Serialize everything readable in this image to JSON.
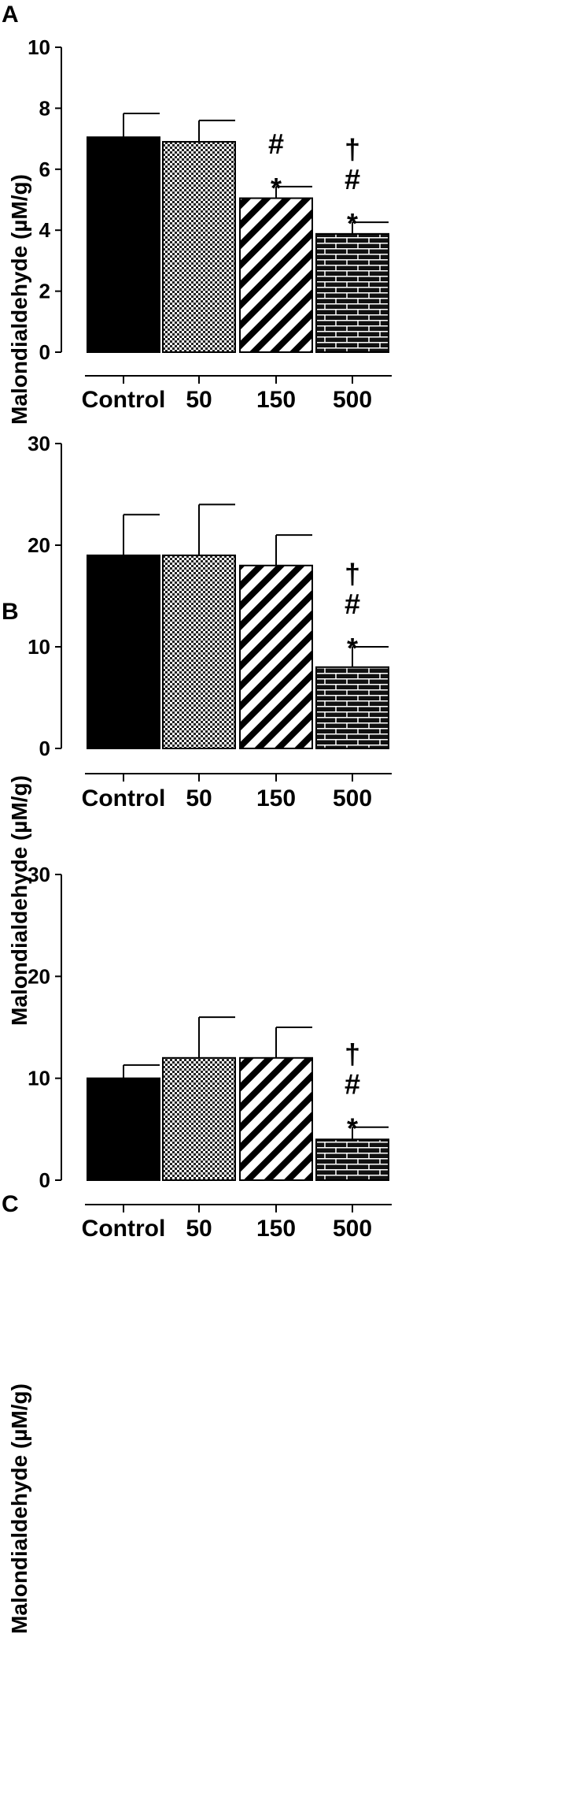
{
  "chart_data": [
    {
      "type": "bar",
      "panel": "A",
      "categories": [
        "Control",
        "50",
        "150",
        "500"
      ],
      "values": [
        7.05,
        6.9,
        5.05,
        3.88
      ],
      "errors": [
        0.78,
        0.7,
        0.38,
        0.38
      ],
      "patterns": [
        "solid",
        "checker",
        "diagonal",
        "brick"
      ],
      "ylabel": "Malondialdehyde (µM/g)",
      "ylim": [
        0,
        10
      ],
      "yticks": [
        0,
        2,
        4,
        6,
        8,
        10
      ],
      "annotations": [
        {
          "category": "150",
          "symbols": [
            "#",
            "*"
          ]
        },
        {
          "category": "500",
          "symbols": [
            "†",
            "#",
            "*"
          ]
        }
      ],
      "grid": false
    },
    {
      "type": "bar",
      "panel": "B",
      "categories": [
        "Control",
        "50",
        "150",
        "500"
      ],
      "values": [
        19,
        19,
        18,
        8
      ],
      "errors": [
        4,
        5,
        3,
        2
      ],
      "patterns": [
        "solid",
        "checker",
        "diagonal",
        "brick"
      ],
      "ylabel": "Malondialdehyde (µM/g)",
      "ylim": [
        0,
        30
      ],
      "yticks": [
        0,
        10,
        20,
        30
      ],
      "annotations": [
        {
          "category": "500",
          "symbols": [
            "†",
            "#",
            "*"
          ]
        }
      ],
      "grid": false
    },
    {
      "type": "bar",
      "panel": "C",
      "categories": [
        "Control",
        "50",
        "150",
        "500"
      ],
      "values": [
        10,
        12,
        12,
        4
      ],
      "errors": [
        1.3,
        4,
        3,
        1.2
      ],
      "patterns": [
        "solid",
        "checker",
        "diagonal",
        "brick"
      ],
      "ylabel": "Malondialdehyde (µM/g)",
      "ylim": [
        0,
        30
      ],
      "yticks": [
        0,
        10,
        20,
        30
      ],
      "annotations": [
        {
          "category": "500",
          "symbols": [
            "†",
            "#",
            "*"
          ]
        }
      ],
      "grid": false
    }
  ]
}
